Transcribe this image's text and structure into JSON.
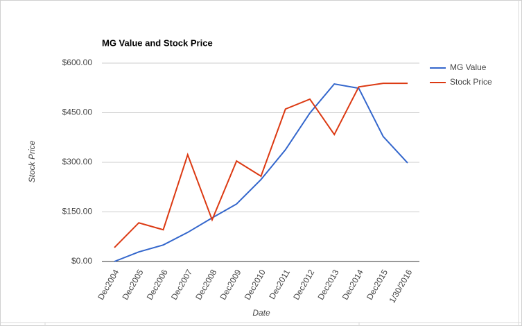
{
  "chart_data": {
    "type": "line",
    "title": "MG Value and Stock Price",
    "x_label": "Date",
    "y_label": "Stock Price",
    "categories": [
      "Dec2004",
      "Dec2005",
      "Dec2006",
      "Dec2007",
      "Dec2008",
      "Dec2009",
      "Dec2010",
      "Dec2011",
      "Dec2012",
      "Dec2013",
      "Dec2014",
      "Dec2015",
      "1/30/2016"
    ],
    "series": [
      {
        "name": "MG Value",
        "color": "#3366cc",
        "values": [
          0,
          29,
          50,
          88,
          132,
          174,
          248,
          338,
          449,
          537,
          524,
          378,
          298
        ]
      },
      {
        "name": "Stock Price",
        "color": "#dc3912",
        "values": [
          42,
          117,
          96,
          323,
          126,
          304,
          258,
          461,
          491,
          384,
          528,
          539,
          539
        ]
      }
    ],
    "ylim": [
      0,
      600
    ],
    "yticks": [
      {
        "value": 0,
        "label": "$0.00"
      },
      {
        "value": 150,
        "label": "$150.00"
      },
      {
        "value": 300,
        "label": "$300.00"
      },
      {
        "value": 450,
        "label": "$450.00"
      },
      {
        "value": 600,
        "label": "$600.00"
      }
    ],
    "grid": true,
    "legend": "right"
  }
}
